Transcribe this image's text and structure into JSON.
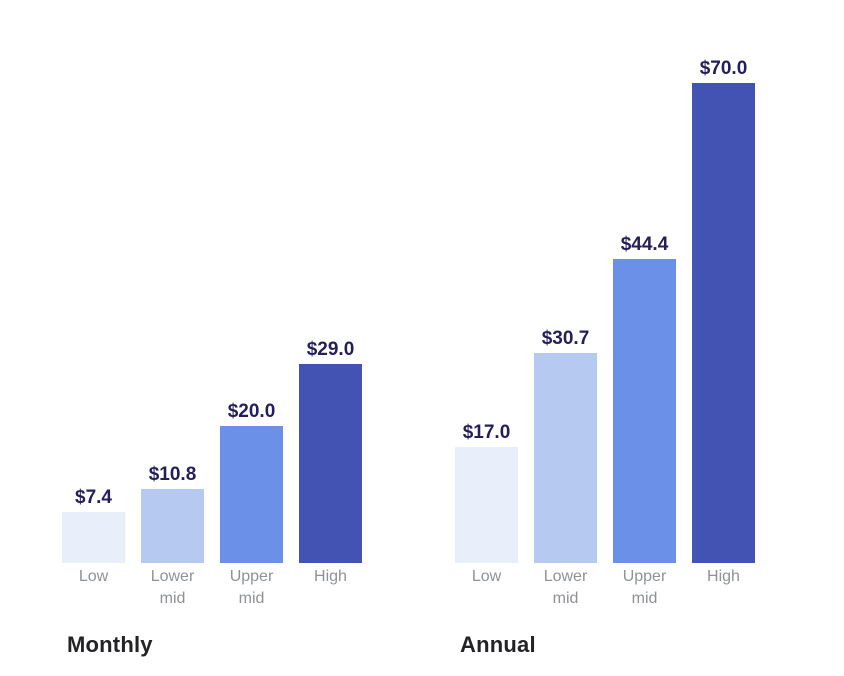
{
  "page": {
    "background": "#FFFFFF"
  },
  "style": {
    "value_label_color": "#241F5C",
    "category_label_color": "#8F9297",
    "title_color": "#232327"
  },
  "chart_data": [
    {
      "type": "bar",
      "title": "Monthly",
      "categories": [
        "Low",
        "Lower mid",
        "Upper mid",
        "High"
      ],
      "values": [
        7.4,
        10.8,
        20.0,
        29.0
      ],
      "value_labels": [
        "$7.4",
        "$10.8",
        "$20.0",
        "$29.0"
      ],
      "bar_colors": [
        "#E9EEFB",
        "#B6CAF1",
        "#6B90E7",
        "#4353B4"
      ],
      "ylim": [
        0,
        82
      ],
      "grid": false,
      "legend": false,
      "value_labels_position": "above-bars",
      "title_position": "below"
    },
    {
      "type": "bar",
      "title": "Annual",
      "categories": [
        "Low",
        "Lower mid",
        "Upper mid",
        "High"
      ],
      "values": [
        17.0,
        30.7,
        44.4,
        70.0
      ],
      "value_labels": [
        "$17.0",
        "$30.7",
        "$44.4",
        "$70.0"
      ],
      "bar_colors": [
        "#E9EEFB",
        "#B6CAF1",
        "#6B90E7",
        "#4353B4"
      ],
      "ylim": [
        0,
        82
      ],
      "grid": false,
      "legend": false,
      "value_labels_position": "above-bars",
      "title_position": "below"
    }
  ]
}
